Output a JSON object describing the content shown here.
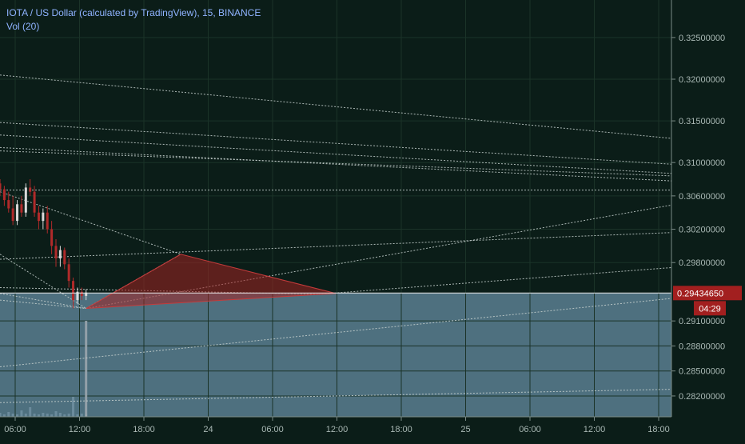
{
  "header": {
    "symbol_line": "IOTA / US Dollar (calculated by TradingView), 15, BINANCE",
    "volume_line": "Vol (20)"
  },
  "price_axis": {
    "ticks": [
      "0.32500000",
      "0.32000000",
      "0.31500000",
      "0.31000000",
      "0.30600000",
      "0.30200000",
      "0.29800000",
      "0.29100000",
      "0.28800000",
      "0.28500000",
      "0.28200000"
    ],
    "last_price_label": "0.29434650",
    "countdown_label": "04:29"
  },
  "time_axis": {
    "ticks": [
      "06:00",
      "12:00",
      "18:00",
      "24",
      "06:00",
      "12:00",
      "18:00",
      "25",
      "06:00",
      "12:00",
      "18:00"
    ]
  },
  "colors": {
    "background": "#0b1d18",
    "grid": "#1b3328",
    "candle_up": "#d9d9d9",
    "candle_down": "#b02a2a",
    "triangle_fill": "#a32222",
    "triangle_stroke": "#c53b3b",
    "last_price_bg": "#a21f1f",
    "lower_zone": "#5b7f92",
    "trendline": "#c8d2d0",
    "legend_text": "#8fb3ff",
    "volume_bar": "#6f8ea0"
  },
  "chart_data": {
    "type": "candlestick",
    "symbol": "IOTA / US Dollar (calculated by TradingView)",
    "interval": "15",
    "exchange": "BINANCE",
    "ylim": [
      0.2795,
      0.3295
    ],
    "x_range": [
      0,
      78
    ],
    "last_price": 0.2943465,
    "countdown": "04:29",
    "grid": true,
    "candles": [
      {
        "o": 0.3075,
        "h": 0.308,
        "l": 0.306,
        "c": 0.3068
      },
      {
        "o": 0.3068,
        "h": 0.3072,
        "l": 0.3048,
        "c": 0.3055
      },
      {
        "o": 0.3055,
        "h": 0.3065,
        "l": 0.304,
        "c": 0.3045
      },
      {
        "o": 0.3045,
        "h": 0.306,
        "l": 0.3025,
        "c": 0.303
      },
      {
        "o": 0.303,
        "h": 0.3055,
        "l": 0.3025,
        "c": 0.305
      },
      {
        "o": 0.305,
        "h": 0.306,
        "l": 0.3035,
        "c": 0.304
      },
      {
        "o": 0.304,
        "h": 0.3075,
        "l": 0.3035,
        "c": 0.307
      },
      {
        "o": 0.307,
        "h": 0.308,
        "l": 0.306,
        "c": 0.3065
      },
      {
        "o": 0.3065,
        "h": 0.3072,
        "l": 0.3035,
        "c": 0.304
      },
      {
        "o": 0.304,
        "h": 0.3048,
        "l": 0.302,
        "c": 0.303
      },
      {
        "o": 0.303,
        "h": 0.3045,
        "l": 0.302,
        "c": 0.304
      },
      {
        "o": 0.304,
        "h": 0.3048,
        "l": 0.3015,
        "c": 0.302
      },
      {
        "o": 0.302,
        "h": 0.303,
        "l": 0.299,
        "c": 0.3
      },
      {
        "o": 0.3,
        "h": 0.3008,
        "l": 0.2975,
        "c": 0.2985
      },
      {
        "o": 0.2985,
        "h": 0.3,
        "l": 0.2975,
        "c": 0.2995
      },
      {
        "o": 0.2995,
        "h": 0.2998,
        "l": 0.2972,
        "c": 0.2978
      },
      {
        "o": 0.2978,
        "h": 0.2985,
        "l": 0.295,
        "c": 0.2958
      },
      {
        "o": 0.2958,
        "h": 0.2962,
        "l": 0.2925,
        "c": 0.2935
      },
      {
        "o": 0.2935,
        "h": 0.295,
        "l": 0.293,
        "c": 0.2945
      },
      {
        "o": 0.2945,
        "h": 0.295,
        "l": 0.2935,
        "c": 0.294
      },
      {
        "o": 0.294,
        "h": 0.2948,
        "l": 0.2935,
        "c": 0.2944
      }
    ],
    "trend_lines": [
      {
        "x1": 0,
        "y1": 0.3205,
        "x2": 78,
        "y2": 0.3129
      },
      {
        "x1": 0,
        "y1": 0.3148,
        "x2": 78,
        "y2": 0.3098
      },
      {
        "x1": 0,
        "y1": 0.3133,
        "x2": 78,
        "y2": 0.3087
      },
      {
        "x1": 0,
        "y1": 0.3118,
        "x2": 78,
        "y2": 0.3078
      },
      {
        "x1": 0,
        "y1": 0.3114,
        "x2": 78,
        "y2": 0.3084
      },
      {
        "x1": 0,
        "y1": 0.3067,
        "x2": 78,
        "y2": 0.3067
      },
      {
        "x1": 0,
        "y1": 0.2984,
        "x2": 78,
        "y2": 0.3016
      },
      {
        "x1": 10,
        "y1": 0.2925,
        "x2": 78,
        "y2": 0.3049
      },
      {
        "x1": 0,
        "y1": 0.3065,
        "x2": 21,
        "y2": 0.299
      },
      {
        "x1": 10,
        "y1": 0.2925,
        "x2": 21,
        "y2": 0.299
      },
      {
        "x1": 0,
        "y1": 0.295,
        "x2": 37,
        "y2": 0.2942
      },
      {
        "x1": 37,
        "y1": 0.2942,
        "x2": 78,
        "y2": 0.2974
      },
      {
        "x1": 0,
        "y1": 0.2855,
        "x2": 78,
        "y2": 0.2937
      },
      {
        "x1": 0,
        "y1": 0.2812,
        "x2": 78,
        "y2": 0.2828
      },
      {
        "x1": 0,
        "y1": 0.2943,
        "x2": 10,
        "y2": 0.2925
      },
      {
        "x1": 0,
        "y1": 0.2935,
        "x2": 10,
        "y2": 0.2925
      },
      {
        "x1": 0,
        "y1": 0.299,
        "x2": 10,
        "y2": 0.2925
      }
    ],
    "triangle": [
      {
        "x": 10,
        "y": 0.2925
      },
      {
        "x": 21,
        "y": 0.299
      },
      {
        "x": 39,
        "y": 0.2943
      }
    ]
  }
}
